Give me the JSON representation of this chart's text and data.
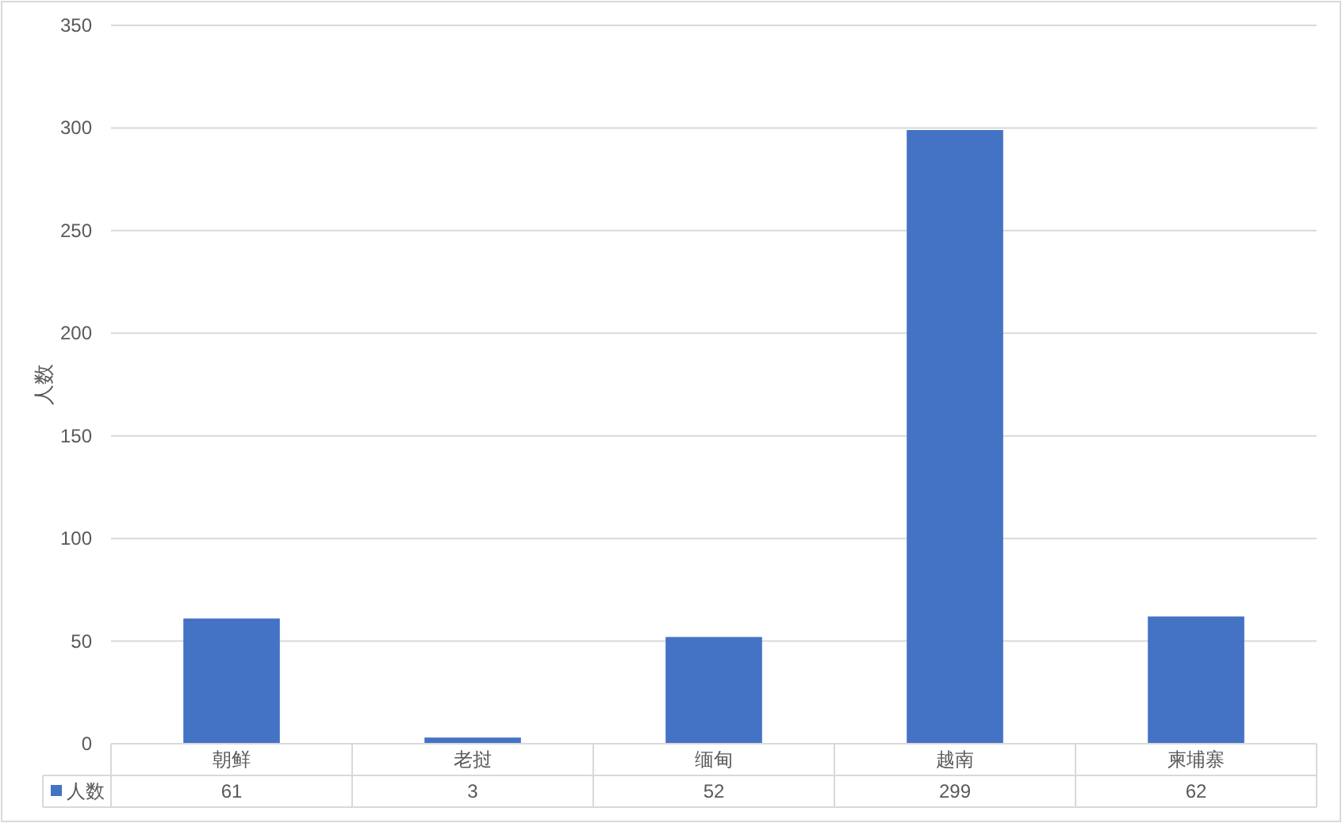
{
  "chart_data": {
    "type": "bar",
    "ylabel": "人数",
    "categories": [
      "朝鲜",
      "老挝",
      "缅甸",
      "越南",
      "柬埔寨"
    ],
    "series": [
      {
        "name": "人数",
        "color": "#4472c4",
        "values": [
          61,
          3,
          52,
          299,
          62
        ]
      }
    ],
    "ylim": [
      0,
      350
    ],
    "yticks": [
      0,
      50,
      100,
      150,
      200,
      250,
      300,
      350
    ],
    "grid": "y",
    "data_labels": true,
    "legend": "bottom"
  }
}
